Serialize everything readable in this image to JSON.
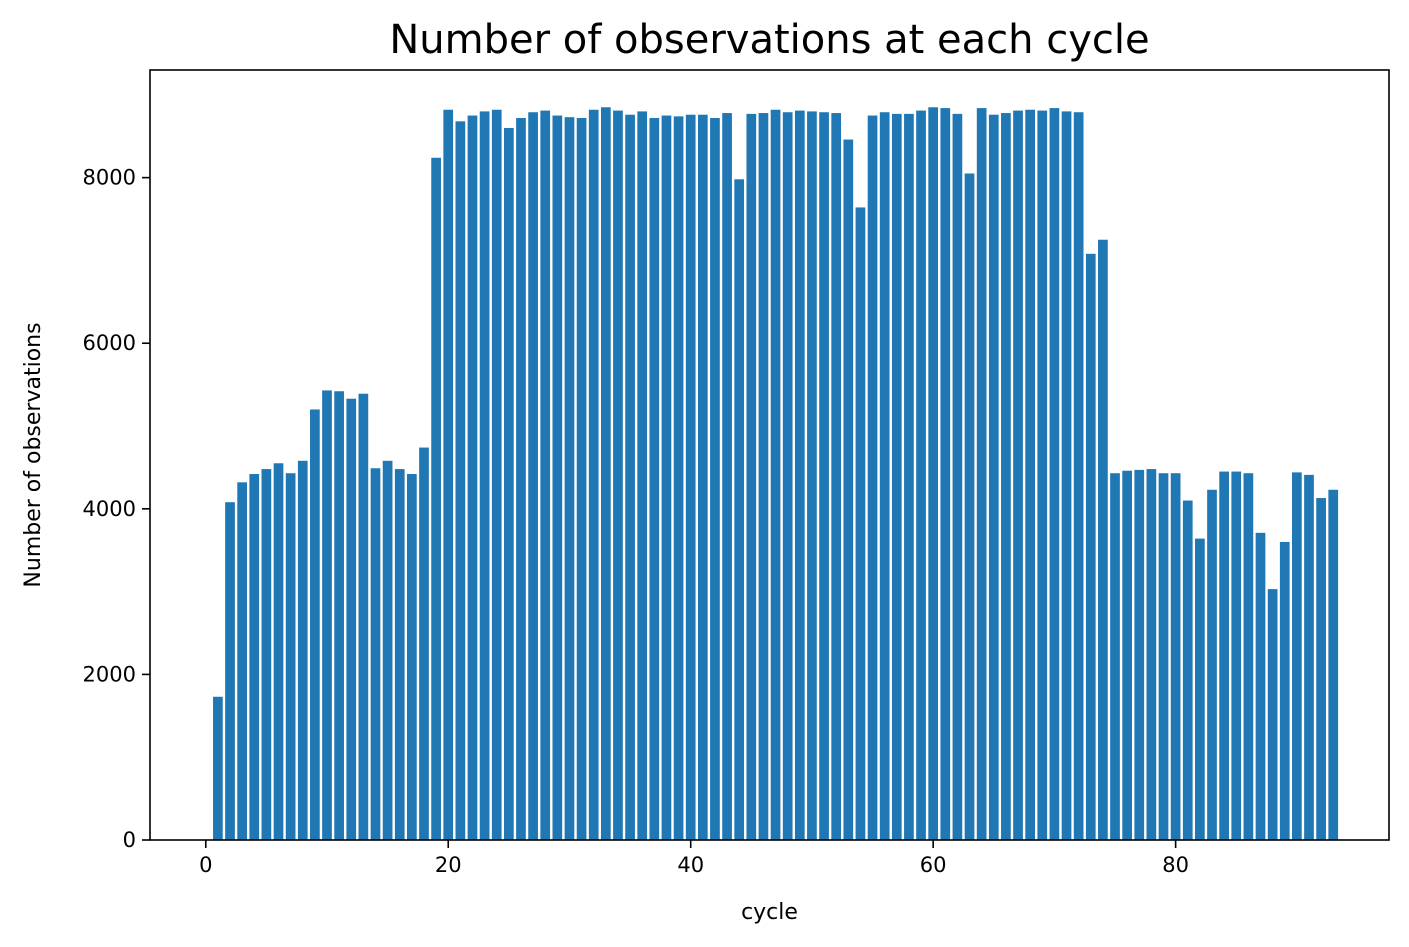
{
  "chart_data": {
    "type": "bar",
    "title": "Number of observations at each cycle",
    "xlabel": "cycle",
    "ylabel": "Number of observations",
    "xlim": [
      -4.6,
      97.6
    ],
    "ylim": [
      0,
      9300
    ],
    "x_ticks": [
      0,
      20,
      40,
      60,
      80
    ],
    "y_ticks": [
      0,
      2000,
      4000,
      6000,
      8000
    ],
    "bar_width": 0.8,
    "grid": false,
    "bar_color": "#1f77b4",
    "x": [
      1,
      2,
      3,
      4,
      5,
      6,
      7,
      8,
      9,
      10,
      11,
      12,
      13,
      14,
      15,
      16,
      17,
      18,
      19,
      20,
      21,
      22,
      23,
      24,
      25,
      26,
      27,
      28,
      29,
      30,
      31,
      32,
      33,
      34,
      35,
      36,
      37,
      38,
      39,
      40,
      41,
      42,
      43,
      44,
      45,
      46,
      47,
      48,
      49,
      50,
      51,
      52,
      53,
      54,
      55,
      56,
      57,
      58,
      59,
      60,
      61,
      62,
      63,
      64,
      65,
      66,
      67,
      68,
      69,
      70,
      71,
      72,
      73,
      74,
      75,
      76,
      77,
      78,
      79,
      80,
      81,
      82,
      83,
      84,
      85,
      86,
      87,
      88,
      89,
      90,
      91,
      92,
      93
    ],
    "values": [
      1730,
      4080,
      4320,
      4420,
      4480,
      4550,
      4430,
      4580,
      5200,
      5430,
      5420,
      5330,
      5390,
      4490,
      4580,
      4480,
      4420,
      4740,
      8240,
      8820,
      8680,
      8750,
      8800,
      8820,
      8600,
      8720,
      8790,
      8810,
      8750,
      8730,
      8720,
      8820,
      8850,
      8810,
      8760,
      8800,
      8720,
      8750,
      8740,
      8760,
      8760,
      8720,
      8780,
      7980,
      8770,
      8780,
      8820,
      8790,
      8810,
      8800,
      8790,
      8780,
      8460,
      7640,
      8750,
      8790,
      8770,
      8770,
      8810,
      8850,
      8840,
      8770,
      8050,
      8840,
      8760,
      8780,
      8810,
      8820,
      8810,
      8840,
      8800,
      8790,
      7080,
      7250,
      4430,
      4460,
      4470,
      4480,
      4430,
      4430,
      4100,
      3640,
      4230,
      4450,
      4450,
      4430,
      3710,
      3030,
      3600,
      4440,
      4410,
      4130,
      4230
    ]
  }
}
